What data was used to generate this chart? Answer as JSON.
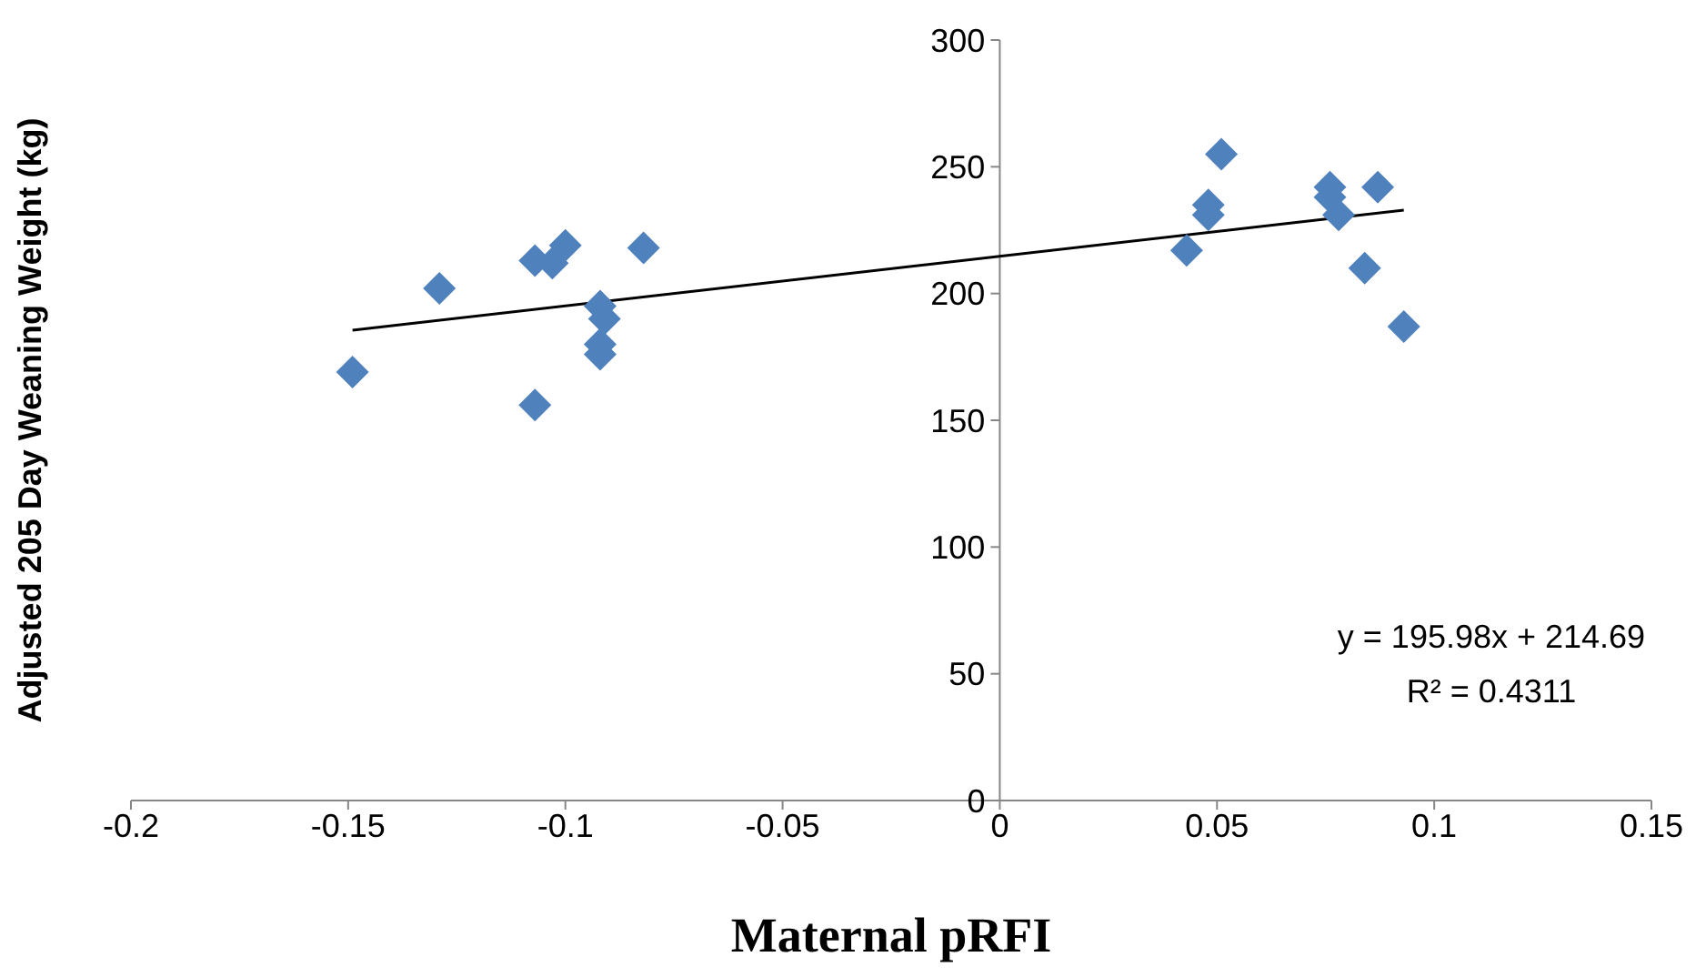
{
  "chart_data": {
    "type": "scatter",
    "xlabel": "Maternal pRFI",
    "ylabel": "Adjusted 205 Day Weaning Weight (kg)",
    "xlim": [
      -0.2,
      0.15
    ],
    "xticks": [
      -0.2,
      -0.15,
      -0.1,
      -0.05,
      0,
      0.05,
      0.1,
      0.15
    ],
    "ylim": [
      0,
      300
    ],
    "yticks": [
      0,
      50,
      100,
      150,
      200,
      250,
      300
    ],
    "marker": "diamond",
    "annotations": [
      "y = 195.98x + 214.69",
      "R² = 0.4311"
    ],
    "series": [
      {
        "color": "#4f81bd",
        "x": [
          -0.149,
          -0.129,
          -0.107,
          -0.107,
          -0.103,
          -0.1,
          -0.082,
          -0.092,
          -0.091,
          -0.092,
          -0.092,
          0.043,
          0.048,
          0.048,
          0.051,
          0.076,
          0.076,
          0.078,
          0.084,
          0.087,
          0.093
        ],
        "values": [
          169,
          202,
          213,
          156,
          212,
          219,
          218,
          195,
          190,
          180,
          176,
          217,
          235,
          231,
          255,
          242,
          238,
          231,
          210,
          242,
          187
        ]
      },
      {
        "type": "line",
        "color": "#000000",
        "marker": "none",
        "line_style": "solid",
        "x": [
          -0.149,
          0.093
        ],
        "values": [
          185.5,
          232.9
        ]
      }
    ]
  }
}
